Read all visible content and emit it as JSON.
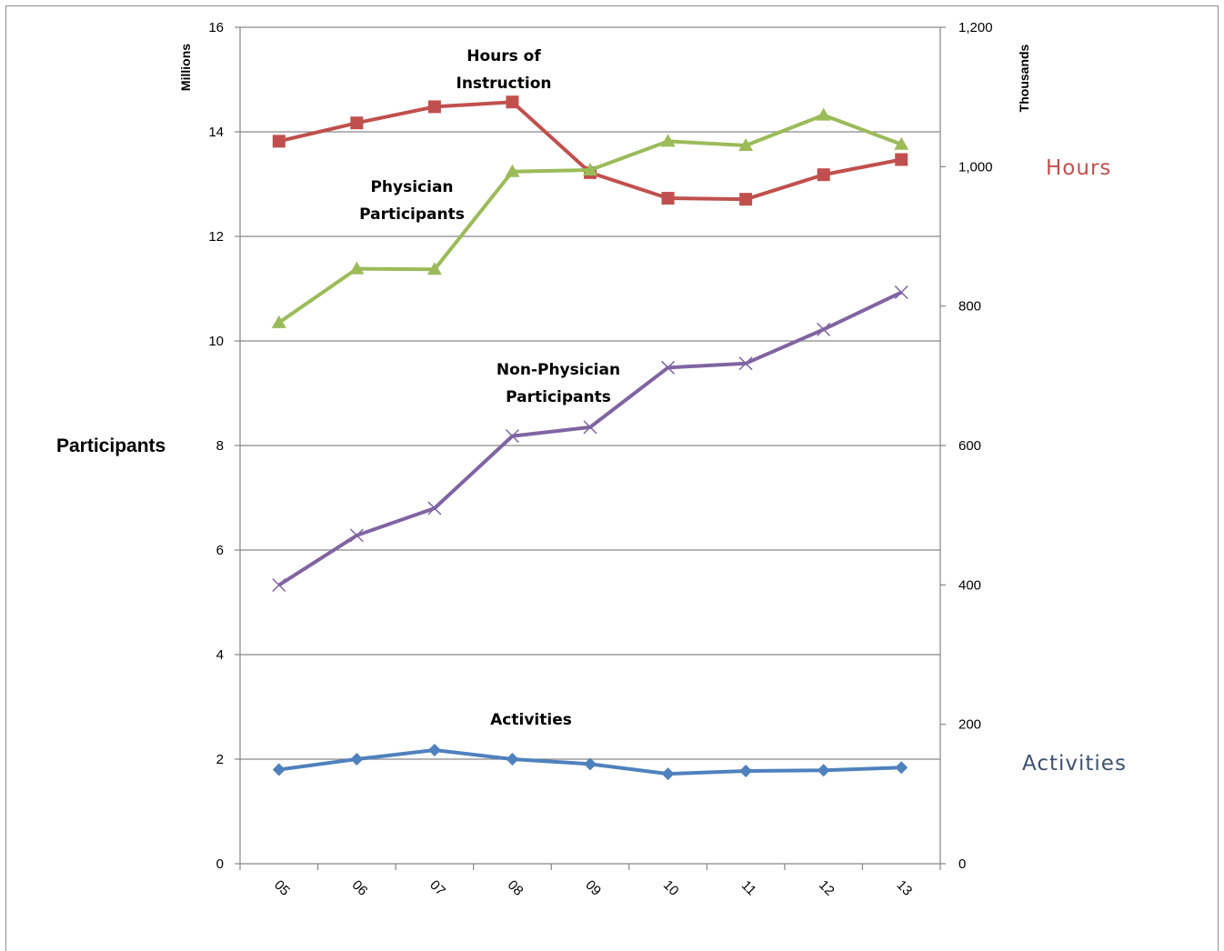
{
  "chart_data": {
    "type": "line",
    "categories": [
      "05",
      "06",
      "07",
      "08",
      "09",
      "10",
      "11",
      "12",
      "13"
    ],
    "left_axis": {
      "unit_label": "Millions",
      "title": "Participants",
      "ylim": [
        0,
        16
      ],
      "ticks": [
        "0",
        "2",
        "4",
        "6",
        "8",
        "10",
        "12",
        "14",
        "16"
      ]
    },
    "right_axis": {
      "unit_label": "Thousands",
      "ylim": [
        0,
        1200
      ],
      "ticks": [
        "0",
        "200",
        "400",
        "600",
        "800",
        "1,000",
        "1,200"
      ]
    },
    "series": [
      {
        "annotation": [
          "Hours of",
          "Instruction"
        ],
        "axis": "left",
        "marker": "square",
        "color": "#c0504d",
        "values": [
          13.82,
          14.17,
          14.48,
          14.57,
          13.22,
          12.73,
          12.71,
          13.18,
          13.47
        ]
      },
      {
        "annotation": [
          "Physician",
          "Participants"
        ],
        "axis": "left",
        "marker": "triangle",
        "color": "#9bbb59",
        "values": [
          10.35,
          11.38,
          11.37,
          13.24,
          13.27,
          13.82,
          13.74,
          14.32,
          13.76
        ]
      },
      {
        "annotation": [
          "Non-Physician",
          "Participants"
        ],
        "axis": "left",
        "marker": "x",
        "color": "#8064a2",
        "values": [
          5.33,
          6.28,
          6.8,
          8.18,
          8.35,
          9.49,
          9.57,
          10.22,
          10.93
        ]
      },
      {
        "annotation": [
          "Activities"
        ],
        "axis": "right",
        "marker": "diamond",
        "color": "#4f81bd",
        "values": [
          135,
          150,
          163,
          150,
          143,
          129,
          133,
          134,
          138
        ]
      }
    ],
    "side_labels": {
      "hours": {
        "text": "Hours",
        "color": "#c0504d"
      },
      "activities": {
        "text": "Activities",
        "color": "#3f5170"
      }
    },
    "grid": "horizontal",
    "legend": "none"
  }
}
